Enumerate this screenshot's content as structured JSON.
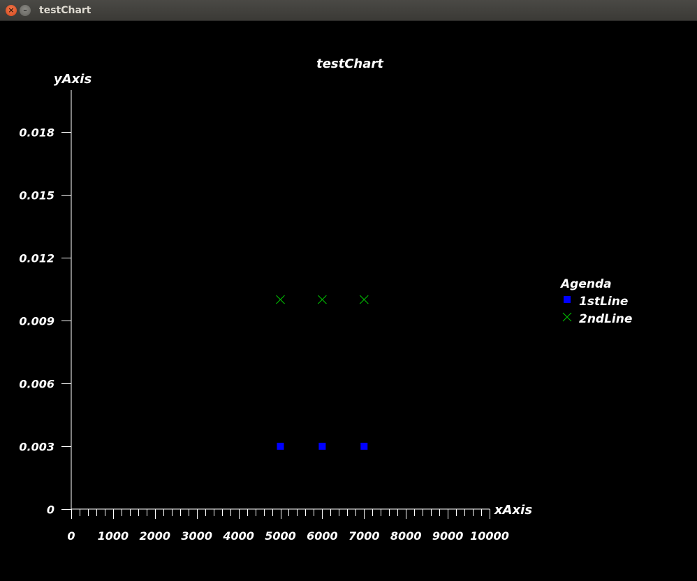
{
  "window": {
    "title": "testChart",
    "close_glyph": "×",
    "minimize_glyph": "–"
  },
  "chart_data": {
    "type": "scatter",
    "title": "testChart",
    "xlabel": "xAxis",
    "ylabel": "yAxis",
    "xlim": [
      0,
      10000
    ],
    "ylim": [
      0,
      0.02
    ],
    "x_ticks": [
      0,
      1000,
      2000,
      3000,
      4000,
      5000,
      6000,
      7000,
      8000,
      9000,
      10000
    ],
    "x_tick_labels": [
      "0",
      "1000",
      "2000",
      "3000",
      "4000",
      "5000",
      "6000",
      "7000",
      "8000",
      "9000",
      "10000"
    ],
    "x_minor_step": 200,
    "y_ticks": [
      0,
      0.003,
      0.006,
      0.009,
      0.012,
      0.015,
      0.018
    ],
    "y_tick_labels": [
      "0",
      "0.003",
      "0.006",
      "0.009",
      "0.012",
      "0.015",
      "0.018"
    ],
    "grid": false,
    "legend": {
      "title": "Agenda",
      "position": "right"
    },
    "series": [
      {
        "name": "1stLine",
        "marker": "square",
        "color": "#0000ff",
        "x": [
          5000,
          6000,
          7000
        ],
        "y": [
          0.003,
          0.003,
          0.003
        ]
      },
      {
        "name": "2ndLine",
        "marker": "x",
        "color": "#00b400",
        "x": [
          5000,
          6000,
          7000
        ],
        "y": [
          0.01,
          0.01,
          0.01
        ]
      }
    ],
    "colors": {
      "background": "#000000",
      "axis": "#ffffff",
      "text": "#ffffff"
    }
  }
}
